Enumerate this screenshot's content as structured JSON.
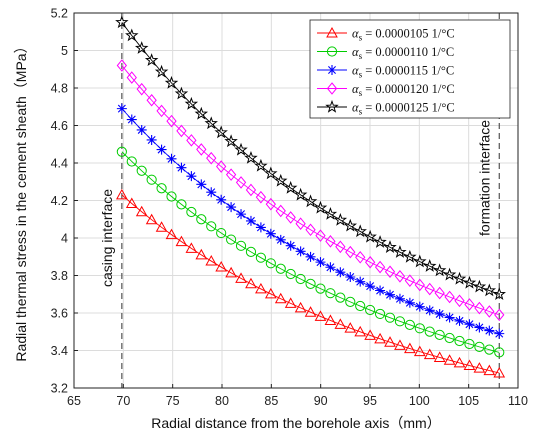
{
  "chart_data": {
    "type": "line",
    "title": "",
    "xlabel": "Radial distance from the borehole axis（mm）",
    "ylabel": "Radial thermal stress in the cement sheath（MPa）",
    "xlim": [
      65,
      110
    ],
    "ylim": [
      3.2,
      5.2
    ],
    "xticks": [
      "65",
      "70",
      "75",
      "80",
      "85",
      "90",
      "95",
      "100",
      "105",
      "110"
    ],
    "yticks": [
      "3.2",
      "3.4",
      "3.6",
      "3.8",
      "4",
      "4.2",
      "4.4",
      "4.6",
      "4.8",
      "5",
      "5.2"
    ],
    "grid": true,
    "legend_position": "top-right",
    "x_start": 69.85,
    "x_end": 108.1,
    "points_per_series": 39,
    "series": [
      {
        "symbol": "α",
        "subscript": "s",
        "label": " = 0.0000105   1/°C",
        "marker": "triangle",
        "color": "#ff0000",
        "start": 4.23,
        "end": 3.28
      },
      {
        "symbol": "α",
        "subscript": "s",
        "label": " = 0.0000110   1/°C",
        "marker": "circle",
        "color": "#00cc00",
        "start": 4.46,
        "end": 3.39
      },
      {
        "symbol": "α",
        "subscript": "s",
        "label": " = 0.0000115   1/°C",
        "marker": "asterisk",
        "color": "#0000ff",
        "start": 4.69,
        "end": 3.49
      },
      {
        "symbol": "α",
        "subscript": "s",
        "label": " = 0.0000120   1/°C",
        "marker": "diamond",
        "color": "#ff00ff",
        "start": 4.92,
        "end": 3.59
      },
      {
        "symbol": "α",
        "subscript": "s",
        "label": " = 0.0000125   1/°C",
        "marker": "star",
        "color": "#000000",
        "start": 5.15,
        "end": 3.7
      }
    ],
    "annotations": [
      {
        "text": "casing  interface",
        "x": 69.85
      },
      {
        "text": "formation  interface",
        "x": 108.1
      }
    ]
  }
}
